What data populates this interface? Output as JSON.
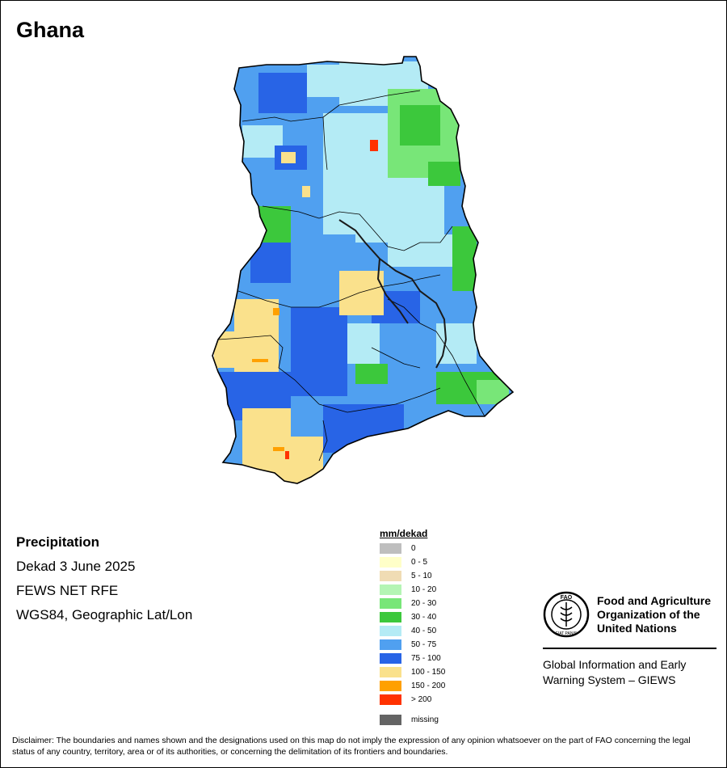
{
  "title": "Ghana",
  "info": {
    "heading": "Precipitation",
    "period": "Dekad 3 June 2025",
    "product": "FEWS NET RFE",
    "projection": "WGS84, Geographic Lat/Lon"
  },
  "legend": {
    "title": "mm/dekad",
    "items": [
      {
        "label": "0",
        "color": "#bebebe"
      },
      {
        "label": "0 - 5",
        "color": "#ffffc8"
      },
      {
        "label": "5 - 10",
        "color": "#f0dcb4"
      },
      {
        "label": "10 - 20",
        "color": "#b4f5b4"
      },
      {
        "label": "20 - 30",
        "color": "#78e678"
      },
      {
        "label": "30 - 40",
        "color": "#3cc83c"
      },
      {
        "label": "40 - 50",
        "color": "#b4ebf5"
      },
      {
        "label": "50 - 75",
        "color": "#50a0f0"
      },
      {
        "label": "75 - 100",
        "color": "#2864e6"
      },
      {
        "label": "100 - 150",
        "color": "#fae18c"
      },
      {
        "label": "150 - 200",
        "color": "#ffa000"
      },
      {
        "label": "> 200",
        "color": "#ff3200"
      }
    ],
    "missing": {
      "label": "missing",
      "color": "#646464"
    }
  },
  "org": {
    "logo_text": "FAO",
    "logo_motto": "FIAT PANIS",
    "name_line1": "Food and Agriculture",
    "name_line2": "Organization of the",
    "name_line3": "United Nations",
    "giews_line1": "Global Information and Early",
    "giews_line2": "Warning System – GIEWS"
  },
  "disclaimer": "Disclaimer: The boundaries and names shown and the designations used on this map do not imply the expression of any opinion whatsoever on the part of FAO concerning the legal status of any country, territory, area or of its authorities, or concerning the delimitation of its frontiers and boundaries."
}
